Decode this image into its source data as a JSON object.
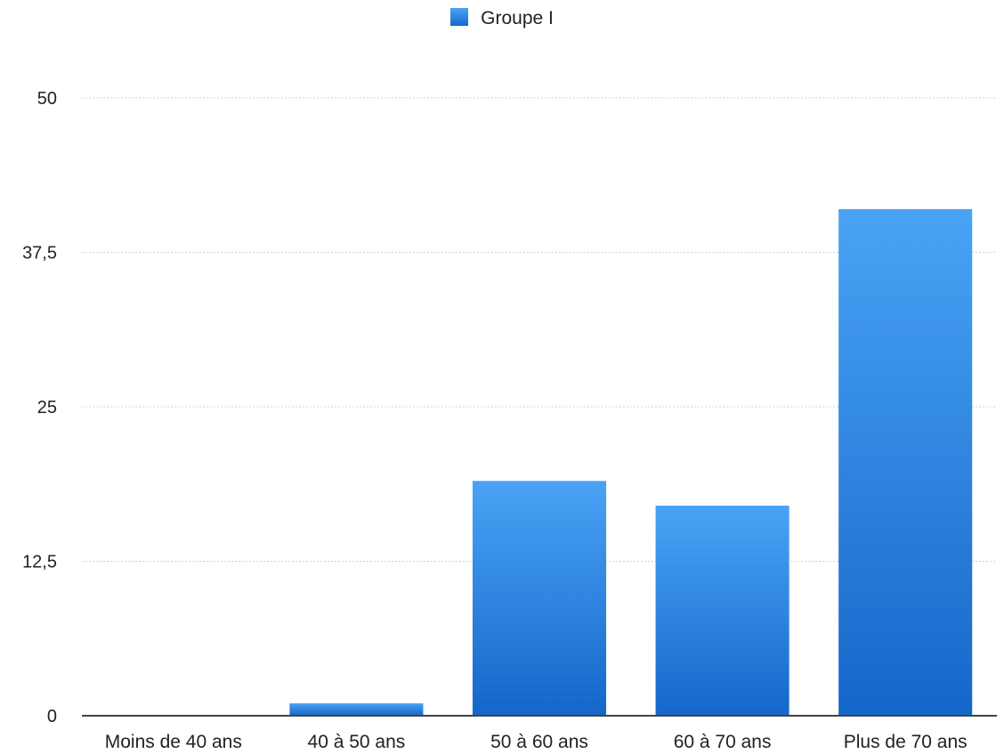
{
  "chart_data": {
    "type": "bar",
    "categories": [
      "Moins de 40 ans",
      "40 à 50 ans",
      "50 à 60 ans",
      "60 à 70 ans",
      "Plus de 70 ans"
    ],
    "series": [
      {
        "name": "Groupe I",
        "values": [
          0,
          1,
          19,
          17,
          41
        ]
      }
    ],
    "ylim": [
      0,
      50
    ],
    "yticks": [
      0,
      12.5,
      25,
      37.5,
      50
    ],
    "ytick_labels": [
      "0",
      "12,5",
      "25",
      "37,5",
      "50"
    ],
    "grid": true,
    "legend_position": "top-center",
    "xlabel": "",
    "ylabel": "",
    "colors": {
      "bar_top": "#4aa3f5",
      "bar_bottom": "#1467c9",
      "grid": "#d0d0d0",
      "axis": "#444444"
    }
  }
}
